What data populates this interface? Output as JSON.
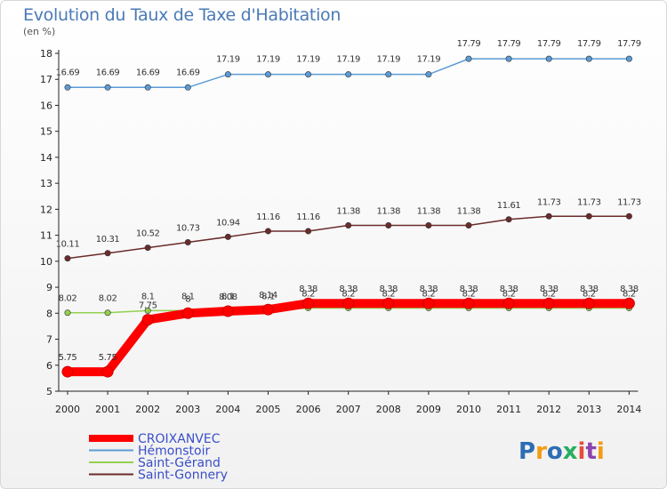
{
  "title": "Evolution du Taux de Taxe d'Habitation",
  "subtitle": "(en %)",
  "logo": {
    "text": "Proxiti"
  },
  "chart_data": {
    "type": "line",
    "title": "Evolution du Taux de Taxe d'Habitation",
    "subtitle": "(en %)",
    "xlabel": "",
    "ylabel": "",
    "x": [
      "2000",
      "2001",
      "2002",
      "2003",
      "2004",
      "2005",
      "2006",
      "2007",
      "2008",
      "2009",
      "2010",
      "2011",
      "2012",
      "2013",
      "2014"
    ],
    "ylim": [
      5,
      18
    ],
    "yticks": [
      5,
      6,
      7,
      8,
      9,
      10,
      11,
      12,
      13,
      14,
      15,
      16,
      17,
      18
    ],
    "grid": false,
    "legend_position": "bottom-left",
    "series": [
      {
        "name": "CROIXANVEC",
        "color": "#ff0000",
        "emphasis": true,
        "values": [
          5.75,
          5.75,
          7.75,
          8.0,
          8.08,
          8.14,
          8.38,
          8.38,
          8.38,
          8.38,
          8.38,
          8.38,
          8.38,
          8.38,
          8.38
        ],
        "labels": [
          "5.75",
          "5.75",
          "7.75",
          "8",
          "8.08",
          "8.14",
          "8.38",
          "8.38",
          "8.38",
          "8.38",
          "8.38",
          "8.38",
          "8.38",
          "8.38",
          "8.38"
        ]
      },
      {
        "name": "Hémonstoir",
        "color": "#5b9bd5",
        "values": [
          16.69,
          16.69,
          16.69,
          16.69,
          17.19,
          17.19,
          17.19,
          17.19,
          17.19,
          17.19,
          17.79,
          17.79,
          17.79,
          17.79,
          17.79
        ],
        "labels": [
          "16.69",
          "16.69",
          "16.69",
          "16.69",
          "17.19",
          "17.19",
          "17.19",
          "17.19",
          "17.19",
          "17.19",
          "17.79",
          "17.79",
          "17.79",
          "17.79",
          "17.79"
        ]
      },
      {
        "name": "Saint-Gérand",
        "color": "#92d050",
        "values": [
          8.02,
          8.02,
          8.1,
          8.1,
          8.1,
          8.1,
          8.2,
          8.2,
          8.2,
          8.2,
          8.2,
          8.2,
          8.2,
          8.2,
          8.2
        ],
        "labels": [
          "8.02",
          "8.02",
          "8.1",
          "8.1",
          "8.1",
          "8.1",
          "8.2",
          "8.2",
          "8.2",
          "8.2",
          "8.2",
          "8.2",
          "8.2",
          "8.2",
          "8.2"
        ]
      },
      {
        "name": "Saint-Gonnery",
        "color": "#6b2b2b",
        "values": [
          10.11,
          10.31,
          10.52,
          10.73,
          10.94,
          11.16,
          11.16,
          11.38,
          11.38,
          11.38,
          11.38,
          11.61,
          11.73,
          11.73,
          11.73
        ],
        "labels": [
          "10.11",
          "10.31",
          "10.52",
          "10.73",
          "10.94",
          "11.16",
          "11.16",
          "11.38",
          "11.38",
          "11.38",
          "11.38",
          "11.61",
          "11.73",
          "11.73",
          "11.73"
        ]
      }
    ]
  }
}
